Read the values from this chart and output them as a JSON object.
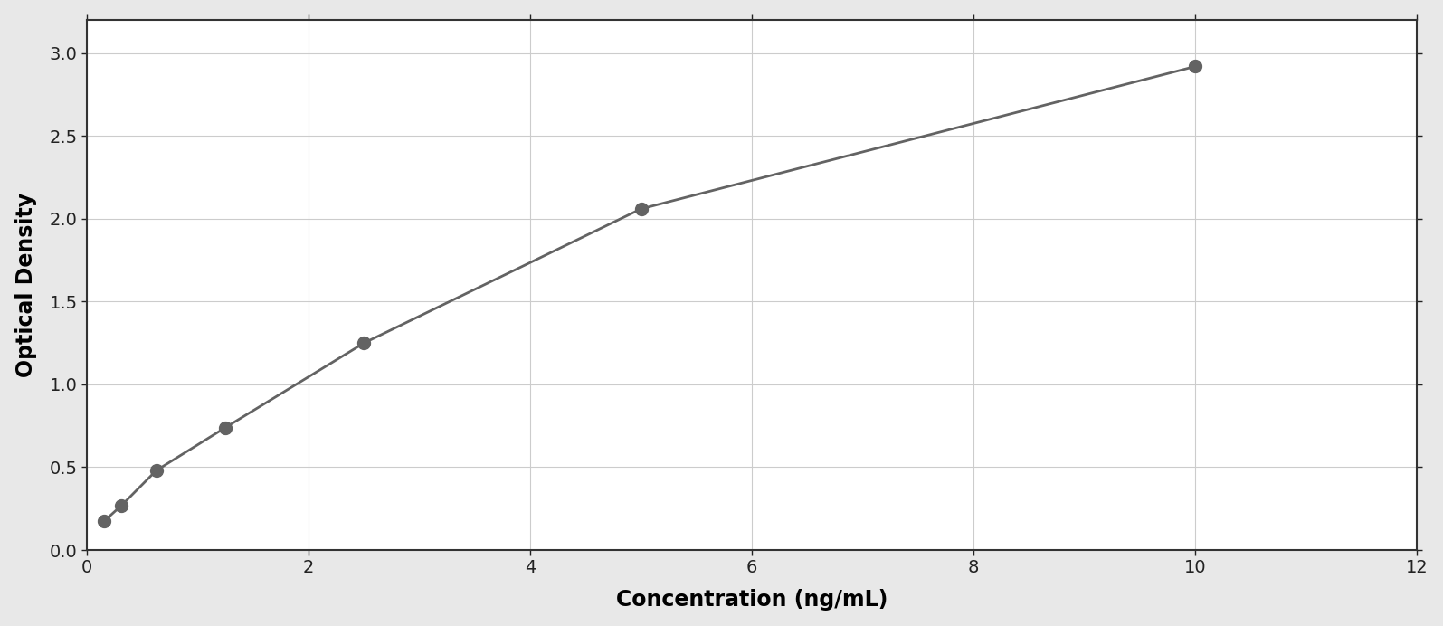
{
  "x_data": [
    0.156,
    0.313,
    0.625,
    1.25,
    2.5,
    5.0,
    10.0
  ],
  "y_data": [
    0.175,
    0.27,
    0.48,
    0.74,
    1.25,
    2.06,
    2.92
  ],
  "point_color": "#636363",
  "line_color": "#636363",
  "xlabel": "Concentration (ng/mL)",
  "ylabel": "Optical Density",
  "xlim": [
    0,
    12
  ],
  "ylim": [
    0,
    3.2
  ],
  "xticks": [
    0,
    2,
    4,
    6,
    8,
    10,
    12
  ],
  "yticks": [
    0,
    0.5,
    1.0,
    1.5,
    2.0,
    2.5,
    3.0
  ],
  "xlabel_fontsize": 17,
  "ylabel_fontsize": 17,
  "tick_fontsize": 14,
  "marker_size": 100,
  "line_width": 2.0,
  "bg_color": "#ffffff",
  "border_color": "#333333",
  "grid_color": "#cccccc"
}
